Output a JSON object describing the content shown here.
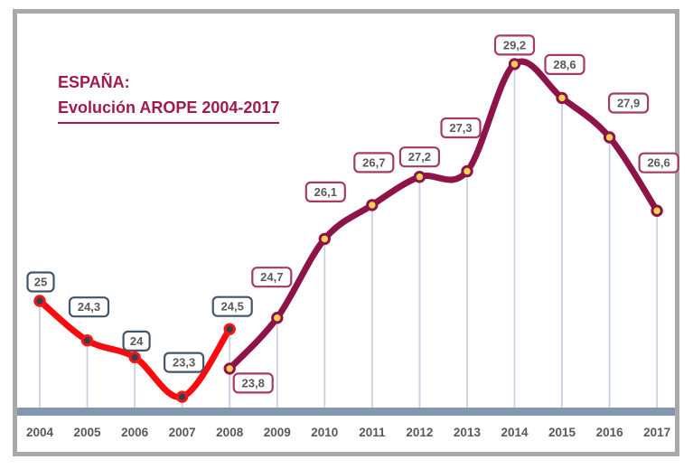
{
  "title": {
    "line1": "ESPAÑA:",
    "line2": "Evolución AROPE 2004-2017"
  },
  "chart_data": {
    "type": "line",
    "title": "ESPAÑA: Evolución AROPE 2004-2017",
    "categories": [
      "2004",
      "2005",
      "2006",
      "2007",
      "2008",
      "2009",
      "2010",
      "2011",
      "2012",
      "2013",
      "2014",
      "2015",
      "2016",
      "2017"
    ],
    "xlabel": "",
    "ylabel": "",
    "y_axis_visible": false,
    "approx_y_range": [
      23.1,
      29.6
    ],
    "grid": "off",
    "legend": "none",
    "annotations": "every point carries a rounded white box showing its value; light vertical drop lines connect points to the baseline bar",
    "series": [
      {
        "name": "red-segment-2004-2008",
        "line_color": "#fb0b0f",
        "marker_fill": "#333f50",
        "marker_stroke": "#ff1413",
        "label_box_border": "#44546a",
        "points": [
          {
            "category": "2004",
            "value": 25,
            "label": "25"
          },
          {
            "category": "2005",
            "value": 24.3,
            "label": "24,3"
          },
          {
            "category": "2006",
            "value": 24,
            "label": "24"
          },
          {
            "category": "2007",
            "value": 23.3,
            "label": "23,3"
          },
          {
            "category": "2008",
            "value": 24.5,
            "label": "24,5"
          }
        ]
      },
      {
        "name": "maroon-segment-2008-2017",
        "line_color": "#8e1348",
        "marker_fill": "#ffd34f",
        "marker_stroke": "#8e1348",
        "label_box_border": "#a53a62",
        "points": [
          {
            "category": "2008",
            "value": 23.8,
            "label": "23,8"
          },
          {
            "category": "2009",
            "value": 24.7,
            "label": "24,7"
          },
          {
            "category": "2010",
            "value": 26.1,
            "label": "26,1"
          },
          {
            "category": "2011",
            "value": 26.7,
            "label": "26,7"
          },
          {
            "category": "2012",
            "value": 27.2,
            "label": "27,2"
          },
          {
            "category": "2013",
            "value": 27.3,
            "label": "27,3"
          },
          {
            "category": "2014",
            "value": 29.2,
            "label": "29,2"
          },
          {
            "category": "2015",
            "value": 28.6,
            "label": "28,6"
          },
          {
            "category": "2016",
            "value": 27.9,
            "label": "27,9"
          },
          {
            "category": "2017",
            "value": 26.6,
            "label": "26,6"
          }
        ]
      }
    ]
  },
  "colors": {
    "baseline_bar": "#8497b0",
    "drop_line": "#c7d2e1",
    "axis_text": "#595959",
    "label_text": "#595959",
    "label_box_fill": "#ffffff",
    "title_text": "#a01a4b",
    "frame_border": "#a9a9a9"
  }
}
